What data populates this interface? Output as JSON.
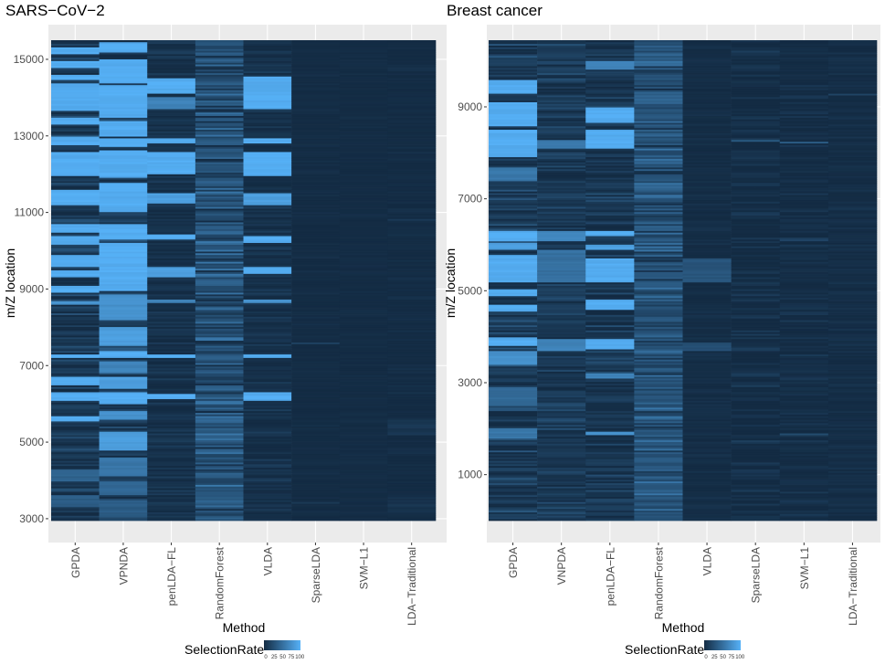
{
  "figure": {
    "legend": {
      "title": "SelectionRate",
      "ticks": [
        "0",
        "25",
        "50",
        "75",
        "100"
      ],
      "low_color": "#132B43",
      "high_color": "#56B1F7"
    },
    "panel_background": "#EBEBEB"
  },
  "chart_data": [
    {
      "type": "heatmap",
      "title": "SARS−CoV−2",
      "xlabel": "Method",
      "ylabel": "m/Z location",
      "categories": [
        "GPDA",
        "VPNDA",
        "penLDA−FL",
        "RandomForest",
        "VLDA",
        "SparseLDA",
        "SVM−L1",
        "LDA−Traditional"
      ],
      "ylim": [
        2950,
        15500
      ],
      "yticks": [
        3000,
        5000,
        7000,
        9000,
        11000,
        13000,
        15000
      ],
      "ytick_labels": [
        "3000",
        "5000",
        "7000",
        "9000",
        "11000",
        "13000",
        "15000"
      ],
      "value_range": [
        0,
        100
      ],
      "series": [
        {
          "method": "GPDA",
          "base": 8,
          "noise": 22,
          "highlights": [
            [
              15150,
              15300,
              100
            ],
            [
              14800,
              14950,
              100
            ],
            [
              14450,
              14600,
              100
            ],
            [
              13650,
              14400,
              100
            ],
            [
              13300,
              13500,
              100
            ],
            [
              12750,
              13000,
              100
            ],
            [
              11950,
              12600,
              100
            ],
            [
              11200,
              11600,
              100
            ],
            [
              10500,
              10700,
              100
            ],
            [
              10150,
              10400,
              100
            ],
            [
              9600,
              9900,
              100
            ],
            [
              9300,
              9500,
              100
            ],
            [
              8900,
              9100,
              100
            ],
            [
              8600,
              8700,
              80
            ],
            [
              7200,
              7300,
              100
            ],
            [
              6500,
              6700,
              100
            ],
            [
              6100,
              6300,
              100
            ],
            [
              5550,
              5700,
              100
            ],
            [
              4000,
              4300,
              45
            ],
            [
              3300,
              3600,
              40
            ]
          ]
        },
        {
          "method": "VPNDA",
          "base": 12,
          "noise": 25,
          "highlights": [
            [
              15200,
              15450,
              100
            ],
            [
              14400,
              15000,
              100
            ],
            [
              13500,
              14350,
              100
            ],
            [
              13000,
              13400,
              100
            ],
            [
              12700,
              12950,
              100
            ],
            [
              11900,
              12650,
              100
            ],
            [
              11000,
              11800,
              100
            ],
            [
              10300,
              10700,
              100
            ],
            [
              8950,
              10200,
              100
            ],
            [
              8200,
              8850,
              80
            ],
            [
              7500,
              8000,
              90
            ],
            [
              7200,
              7400,
              100
            ],
            [
              6800,
              7100,
              70
            ],
            [
              6400,
              6700,
              90
            ],
            [
              6000,
              6300,
              100
            ],
            [
              5600,
              5800,
              80
            ],
            [
              4800,
              5300,
              90
            ],
            [
              4100,
              4600,
              60
            ],
            [
              3600,
              4000,
              50
            ],
            [
              3050,
              3500,
              40
            ]
          ]
        },
        {
          "method": "penLDA−FL",
          "base": 4,
          "noise": 10,
          "highlights": [
            [
              14100,
              14500,
              100
            ],
            [
              13700,
              14000,
              70
            ],
            [
              12800,
              12950,
              100
            ],
            [
              12000,
              12600,
              100
            ],
            [
              11250,
              11500,
              90
            ],
            [
              10300,
              10450,
              100
            ],
            [
              9300,
              9600,
              90
            ],
            [
              8650,
              8720,
              70
            ],
            [
              7220,
              7320,
              100
            ],
            [
              6150,
              6280,
              100
            ]
          ]
        },
        {
          "method": "RandomForest",
          "base": 28,
          "noise": 30,
          "highlights": []
        },
        {
          "method": "VLDA",
          "base": 4,
          "noise": 10,
          "highlights": [
            [
              13700,
              14550,
              100
            ],
            [
              12800,
              12950,
              100
            ],
            [
              11950,
              12600,
              100
            ],
            [
              11200,
              11500,
              90
            ],
            [
              10200,
              10400,
              100
            ],
            [
              9400,
              9600,
              100
            ],
            [
              8650,
              8720,
              80
            ],
            [
              7220,
              7320,
              100
            ],
            [
              6100,
              6300,
              100
            ]
          ]
        },
        {
          "method": "SparseLDA",
          "base": 1,
          "noise": 3,
          "highlights": [
            [
              7550,
              7600,
              20
            ],
            [
              3400,
              3450,
              15
            ]
          ]
        },
        {
          "method": "SVM−L1",
          "base": 1,
          "noise": 2,
          "highlights": []
        },
        {
          "method": "LDA−Traditional",
          "base": 1,
          "noise": 4,
          "highlights": [
            [
              10800,
              10850,
              15
            ],
            [
              5200,
              5600,
              12
            ],
            [
              3100,
              3600,
              10
            ]
          ]
        }
      ]
    },
    {
      "type": "heatmap",
      "title": "Breast cancer",
      "xlabel": "Method",
      "ylabel": "m/Z location",
      "categories": [
        "GPDA",
        "VNPDA",
        "penLDA−FL",
        "RandomForest",
        "VLDA",
        "SparseLDA",
        "SVM−L1",
        "LDA−Traditional"
      ],
      "ylim": [
        0,
        10450
      ],
      "yticks": [
        1000,
        3000,
        5000,
        7000,
        9000
      ],
      "ytick_labels": [
        "1000",
        "3000",
        "5000",
        "7000",
        "9000"
      ],
      "value_range": [
        0,
        100
      ],
      "series": [
        {
          "method": "GPDA",
          "base": 10,
          "noise": 25,
          "highlights": [
            [
              9300,
              9600,
              100
            ],
            [
              8600,
              9100,
              100
            ],
            [
              7900,
              8500,
              100
            ],
            [
              7400,
              7700,
              60
            ],
            [
              6100,
              6300,
              100
            ],
            [
              5900,
              6050,
              90
            ],
            [
              5200,
              5800,
              100
            ],
            [
              4900,
              5050,
              100
            ],
            [
              4550,
              4700,
              100
            ],
            [
              3800,
              4000,
              100
            ],
            [
              3400,
              3700,
              80
            ],
            [
              2500,
              2900,
              50
            ],
            [
              1800,
              2000,
              60
            ]
          ]
        },
        {
          "method": "VNPDA",
          "base": 10,
          "noise": 18,
          "highlights": [
            [
              8100,
              8300,
              60
            ],
            [
              6100,
              6300,
              70
            ],
            [
              5200,
              5900,
              55
            ],
            [
              3700,
              3950,
              70
            ]
          ]
        },
        {
          "method": "penLDA−FL",
          "base": 8,
          "noise": 20,
          "highlights": [
            [
              9800,
              10000,
              70
            ],
            [
              8650,
              9000,
              100
            ],
            [
              8100,
              8500,
              100
            ],
            [
              6200,
              6300,
              100
            ],
            [
              5900,
              6000,
              90
            ],
            [
              5200,
              5700,
              100
            ],
            [
              4600,
              4800,
              100
            ],
            [
              3750,
              3950,
              100
            ],
            [
              3100,
              3200,
              70
            ],
            [
              1850,
              1950,
              80
            ]
          ]
        },
        {
          "method": "RandomForest",
          "base": 28,
          "noise": 28,
          "highlights": [
            [
              9900,
              10000,
              55
            ],
            [
              7200,
              7300,
              45
            ]
          ]
        },
        {
          "method": "VLDA",
          "base": 2,
          "noise": 4,
          "highlights": [
            [
              5200,
              5700,
              35
            ],
            [
              3700,
              3900,
              30
            ]
          ]
        },
        {
          "method": "SparseLDA",
          "base": 2,
          "noise": 12,
          "highlights": [
            [
              8250,
              8300,
              35
            ]
          ]
        },
        {
          "method": "SVM−L1",
          "base": 2,
          "noise": 9,
          "highlights": [
            [
              8200,
              8260,
              40
            ],
            [
              6100,
              6150,
              20
            ],
            [
              1850,
              1900,
              30
            ]
          ]
        },
        {
          "method": "LDA−Traditional",
          "base": 2,
          "noise": 5,
          "highlights": [
            [
              9250,
              9300,
              25
            ]
          ]
        }
      ]
    }
  ]
}
